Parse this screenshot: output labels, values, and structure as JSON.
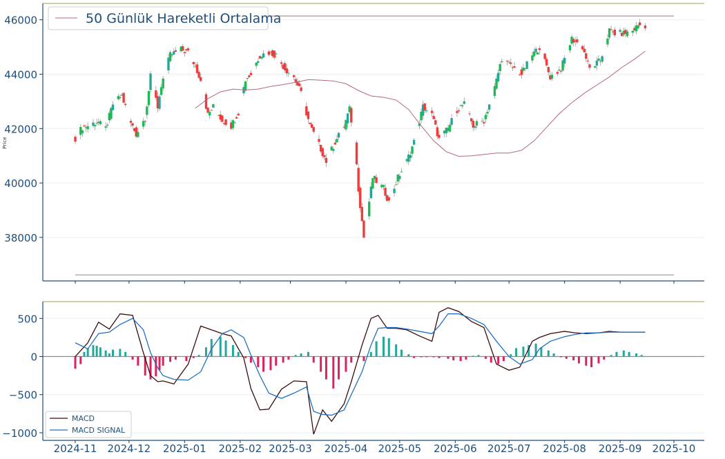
{
  "chart_data": [
    {
      "type": "candlestick",
      "panel": "price",
      "ylabel": "Price",
      "ylim": [
        36400,
        46600
      ],
      "y_ticks": [
        38000,
        40000,
        42000,
        44000,
        46000
      ],
      "y_tick_labels": [
        "38000",
        "40000",
        "42000",
        "44000",
        "46000"
      ],
      "legend": {
        "position": "top-left",
        "entries": [
          "50 Günlük Hareketli Ortalama"
        ]
      },
      "grid": "horizontal",
      "colors": {
        "up": "#26a69a",
        "up_alt": "#1db954",
        "down": "#ef3b3b",
        "ma": "#b5677a",
        "border": "#1f4e79",
        "ref": "#b8b070"
      },
      "reference_lines": [
        46140,
        36620
      ],
      "close_series": {
        "dates": [
          "2024-11-01",
          "2024-11-05",
          "2024-11-08",
          "2024-11-13",
          "2024-11-18",
          "2024-11-22",
          "2024-11-27",
          "2024-12-02",
          "2024-12-05",
          "2024-12-10",
          "2024-12-13",
          "2024-12-17",
          "2024-12-19",
          "2024-12-24",
          "2024-12-30",
          "2025-01-03",
          "2025-01-07",
          "2025-01-10",
          "2025-01-14",
          "2025-01-17",
          "2025-01-22",
          "2025-01-27",
          "2025-01-31",
          "2025-02-04",
          "2025-02-07",
          "2025-02-12",
          "2025-02-17",
          "2025-02-21",
          "2025-02-26",
          "2025-03-03",
          "2025-03-07",
          "2025-03-12",
          "2025-03-17",
          "2025-03-21",
          "2025-03-26",
          "2025-03-31",
          "2025-04-03",
          "2025-04-06",
          "2025-04-08",
          "2025-04-11",
          "2025-04-16",
          "2025-04-22",
          "2025-04-25",
          "2025-04-30",
          "2025-05-05",
          "2025-05-09",
          "2025-05-14",
          "2025-05-19",
          "2025-05-23",
          "2025-05-28",
          "2025-06-02",
          "2025-06-06",
          "2025-06-11",
          "2025-06-17",
          "2025-06-23",
          "2025-06-27",
          "2025-07-02",
          "2025-07-08",
          "2025-07-14",
          "2025-07-18",
          "2025-07-24",
          "2025-07-30",
          "2025-08-05",
          "2025-08-11",
          "2025-08-15",
          "2025-08-21",
          "2025-08-26",
          "2025-08-29",
          "2025-09-03",
          "2025-09-08",
          "2025-09-11",
          "2025-09-15"
        ],
        "values": [
          41650,
          42050,
          42100,
          42250,
          42000,
          42900,
          43200,
          42200,
          41800,
          42400,
          43900,
          42800,
          43600,
          44700,
          44900,
          44800,
          44300,
          43800,
          42500,
          42800,
          42300,
          42100,
          42600,
          43800,
          44000,
          44700,
          44800,
          44700,
          44200,
          43900,
          43300,
          42100,
          41400,
          40800,
          41500,
          42100,
          42700,
          41500,
          39800,
          38000,
          40200,
          39800,
          39300,
          40200,
          40800,
          41500,
          42800,
          42500,
          41600,
          42000,
          42700,
          42900,
          42100,
          42300,
          43500,
          44600,
          44300,
          44000,
          44700,
          45000,
          43900,
          44200,
          45300,
          45000,
          44200,
          44500,
          45600,
          45500,
          45500,
          45600,
          45800,
          45800
        ]
      },
      "ma50_series": {
        "dates": [
          "2025-01-07",
          "2025-01-14",
          "2025-01-21",
          "2025-01-28",
          "2025-02-04",
          "2025-02-11",
          "2025-02-18",
          "2025-02-25",
          "2025-03-04",
          "2025-03-11",
          "2025-03-18",
          "2025-03-25",
          "2025-04-01",
          "2025-04-08",
          "2025-04-15",
          "2025-04-22",
          "2025-04-29",
          "2025-05-06",
          "2025-05-13",
          "2025-05-20",
          "2025-05-27",
          "2025-06-03",
          "2025-06-10",
          "2025-06-17",
          "2025-06-24",
          "2025-07-01",
          "2025-07-08",
          "2025-07-15",
          "2025-07-22",
          "2025-07-29",
          "2025-08-05",
          "2025-08-12",
          "2025-08-19",
          "2025-08-26",
          "2025-09-02",
          "2025-09-09",
          "2025-09-15"
        ],
        "values": [
          42750,
          43100,
          43350,
          43450,
          43420,
          43450,
          43550,
          43620,
          43700,
          43800,
          43780,
          43750,
          43650,
          43400,
          43200,
          43150,
          43050,
          42700,
          42100,
          41550,
          41150,
          40980,
          41000,
          41050,
          41100,
          41100,
          41200,
          41550,
          42050,
          42550,
          42950,
          43300,
          43600,
          43900,
          44250,
          44550,
          44850
        ]
      }
    },
    {
      "type": "line",
      "panel": "macd",
      "ylim": [
        -1100,
        720
      ],
      "y_ticks": [
        -1000,
        -500,
        0,
        500
      ],
      "y_tick_labels": [
        "−1000",
        "−500",
        "0",
        "500"
      ],
      "x_tick_labels": [
        "2024-11",
        "2024-12",
        "2025-01",
        "2025-02",
        "2025-03",
        "2025-04",
        "2025-05",
        "2025-06",
        "2025-07",
        "2025-08",
        "2025-09",
        "2025-10"
      ],
      "legend": {
        "position": "bottom-left",
        "entries": [
          "MACD",
          "MACD SIGNAL"
        ]
      },
      "colors": {
        "macd": "#3a0a0a",
        "signal": "#1f6fc4",
        "hist_pos": "#26a69a",
        "hist_neg": "#e0205a"
      },
      "series": [
        {
          "name": "MACD",
          "dates": [
            "2024-11-01",
            "2024-11-08",
            "2024-11-14",
            "2024-11-20",
            "2024-11-26",
            "2024-12-03",
            "2024-12-09",
            "2024-12-13",
            "2024-12-17",
            "2024-12-20",
            "2024-12-26",
            "2025-01-03",
            "2025-01-10",
            "2025-01-16",
            "2025-01-22",
            "2025-01-27",
            "2025-02-03",
            "2025-02-07",
            "2025-02-12",
            "2025-02-17",
            "2025-02-24",
            "2025-03-03",
            "2025-03-10",
            "2025-03-14",
            "2025-03-19",
            "2025-03-24",
            "2025-03-31",
            "2025-04-04",
            "2025-04-10",
            "2025-04-15",
            "2025-04-19",
            "2025-04-24",
            "2025-04-29",
            "2025-05-05",
            "2025-05-12",
            "2025-05-19",
            "2025-05-23",
            "2025-05-28",
            "2025-06-03",
            "2025-06-10",
            "2025-06-17",
            "2025-06-24",
            "2025-07-01",
            "2025-07-07",
            "2025-07-14",
            "2025-07-18",
            "2025-07-24",
            "2025-08-01",
            "2025-08-07",
            "2025-08-13",
            "2025-08-20",
            "2025-08-26",
            "2025-09-01",
            "2025-09-08",
            "2025-09-15"
          ],
          "values": [
            0,
            180,
            450,
            360,
            560,
            540,
            50,
            -250,
            -330,
            -320,
            -360,
            -100,
            400,
            350,
            300,
            270,
            -20,
            -420,
            -700,
            -690,
            -430,
            -320,
            -330,
            -1020,
            -700,
            -850,
            -620,
            -330,
            150,
            500,
            540,
            370,
            370,
            350,
            270,
            200,
            580,
            640,
            590,
            460,
            380,
            -100,
            -180,
            -140,
            200,
            250,
            300,
            330,
            310,
            300,
            310,
            330,
            320,
            320,
            320
          ]
        },
        {
          "name": "MACD SIGNAL",
          "dates": [
            "2024-11-01",
            "2024-11-08",
            "2024-11-14",
            "2024-11-20",
            "2024-11-26",
            "2024-12-03",
            "2024-12-09",
            "2024-12-13",
            "2024-12-17",
            "2024-12-20",
            "2024-12-26",
            "2025-01-03",
            "2025-01-10",
            "2025-01-16",
            "2025-01-22",
            "2025-01-27",
            "2025-02-03",
            "2025-02-07",
            "2025-02-12",
            "2025-02-17",
            "2025-02-24",
            "2025-03-03",
            "2025-03-10",
            "2025-03-14",
            "2025-03-19",
            "2025-03-24",
            "2025-03-31",
            "2025-04-04",
            "2025-04-10",
            "2025-04-15",
            "2025-04-19",
            "2025-04-24",
            "2025-04-29",
            "2025-05-05",
            "2025-05-12",
            "2025-05-19",
            "2025-05-23",
            "2025-05-28",
            "2025-06-03",
            "2025-06-10",
            "2025-06-17",
            "2025-06-24",
            "2025-07-01",
            "2025-07-07",
            "2025-07-14",
            "2025-07-18",
            "2025-07-24",
            "2025-08-01",
            "2025-08-07",
            "2025-08-13",
            "2025-08-20",
            "2025-08-26",
            "2025-09-01",
            "2025-09-08",
            "2025-09-15"
          ],
          "values": [
            180,
            100,
            300,
            320,
            420,
            500,
            350,
            50,
            -150,
            -250,
            -300,
            -310,
            -200,
            100,
            300,
            350,
            250,
            20,
            -250,
            -480,
            -550,
            -480,
            -400,
            -720,
            -760,
            -770,
            -700,
            -500,
            -200,
            150,
            370,
            380,
            380,
            360,
            330,
            300,
            400,
            560,
            560,
            500,
            420,
            200,
            0,
            -100,
            -40,
            100,
            200,
            260,
            290,
            310,
            310,
            320,
            320,
            320,
            320
          ]
        }
      ],
      "histogram": {
        "dates": [
          "2024-11-01",
          "2024-11-04",
          "2024-11-06",
          "2024-11-08",
          "2024-11-11",
          "2024-11-13",
          "2024-11-15",
          "2024-11-18",
          "2024-11-20",
          "2024-11-22",
          "2024-11-26",
          "2024-11-29",
          "2024-12-03",
          "2024-12-06",
          "2024-12-10",
          "2024-12-13",
          "2024-12-16",
          "2024-12-18",
          "2024-12-20",
          "2024-12-24",
          "2024-12-27",
          "2025-01-02",
          "2025-01-06",
          "2025-01-09",
          "2025-01-13",
          "2025-01-16",
          "2025-01-21",
          "2025-01-24",
          "2025-01-28",
          "2025-01-31",
          "2025-02-04",
          "2025-02-07",
          "2025-02-11",
          "2025-02-14",
          "2025-02-18",
          "2025-02-21",
          "2025-02-25",
          "2025-02-28",
          "2025-03-04",
          "2025-03-07",
          "2025-03-11",
          "2025-03-14",
          "2025-03-18",
          "2025-03-21",
          "2025-03-25",
          "2025-03-28",
          "2025-04-01",
          "2025-04-04",
          "2025-04-08",
          "2025-04-11",
          "2025-04-15",
          "2025-04-18",
          "2025-04-22",
          "2025-04-25",
          "2025-04-29",
          "2025-05-02",
          "2025-05-06",
          "2025-05-09",
          "2025-05-13",
          "2025-05-16",
          "2025-05-20",
          "2025-05-23",
          "2025-05-28",
          "2025-05-31",
          "2025-06-04",
          "2025-06-07",
          "2025-06-11",
          "2025-06-14",
          "2025-06-18",
          "2025-06-21",
          "2025-06-25",
          "2025-06-28",
          "2025-07-02",
          "2025-07-05",
          "2025-07-09",
          "2025-07-12",
          "2025-07-16",
          "2025-07-19",
          "2025-07-23",
          "2025-07-26",
          "2025-07-30",
          "2025-08-02",
          "2025-08-06",
          "2025-08-09",
          "2025-08-13",
          "2025-08-16",
          "2025-08-20",
          "2025-08-23",
          "2025-08-27",
          "2025-08-30",
          "2025-09-03",
          "2025-09-06",
          "2025-09-10",
          "2025-09-13"
        ],
        "values": [
          -160,
          -100,
          60,
          110,
          150,
          140,
          120,
          80,
          40,
          90,
          100,
          60,
          -40,
          -120,
          -250,
          -300,
          -260,
          -180,
          -120,
          -70,
          -40,
          -60,
          -20,
          20,
          120,
          230,
          260,
          210,
          150,
          60,
          -20,
          -80,
          -140,
          -200,
          -180,
          -120,
          -80,
          -40,
          20,
          40,
          60,
          -80,
          -200,
          -300,
          -420,
          -300,
          -200,
          -80,
          -10,
          -60,
          60,
          200,
          260,
          240,
          160,
          90,
          30,
          -20,
          -10,
          -5,
          -10,
          -20,
          -30,
          -50,
          -60,
          -40,
          10,
          20,
          -30,
          -80,
          -100,
          -60,
          30,
          110,
          130,
          150,
          170,
          120,
          80,
          40,
          -10,
          -30,
          -50,
          -90,
          -120,
          -140,
          -90,
          -40,
          20,
          60,
          80,
          60,
          40,
          20
        ]
      }
    }
  ]
}
